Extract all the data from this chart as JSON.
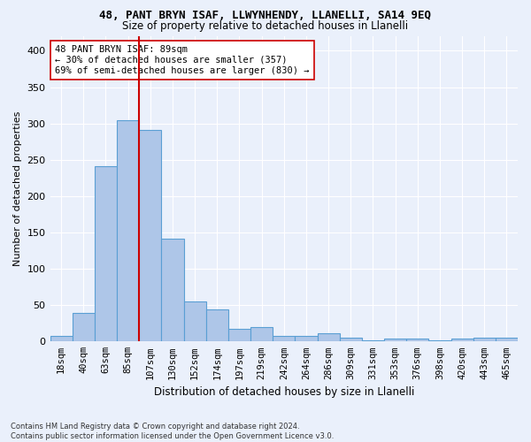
{
  "title1": "48, PANT BRYN ISAF, LLWYNHENDY, LLANELLI, SA14 9EQ",
  "title2": "Size of property relative to detached houses in Llanelli",
  "xlabel": "Distribution of detached houses by size in Llanelli",
  "ylabel": "Number of detached properties",
  "footnote": "Contains HM Land Registry data © Crown copyright and database right 2024.\nContains public sector information licensed under the Open Government Licence v3.0.",
  "categories": [
    "18sqm",
    "40sqm",
    "63sqm",
    "85sqm",
    "107sqm",
    "130sqm",
    "152sqm",
    "174sqm",
    "197sqm",
    "219sqm",
    "242sqm",
    "264sqm",
    "286sqm",
    "309sqm",
    "331sqm",
    "353sqm",
    "376sqm",
    "398sqm",
    "420sqm",
    "443sqm",
    "465sqm"
  ],
  "values": [
    8,
    39,
    241,
    305,
    291,
    142,
    55,
    44,
    18,
    20,
    8,
    8,
    11,
    5,
    2,
    4,
    4,
    1,
    4,
    5,
    5
  ],
  "bar_color": "#aec6e8",
  "bar_edge_color": "#5a9fd4",
  "background_color": "#eaf0fb",
  "grid_color": "#ffffff",
  "vline_pos": 3.5,
  "vline_color": "#cc0000",
  "annotation_text": "48 PANT BRYN ISAF: 89sqm\n← 30% of detached houses are smaller (357)\n69% of semi-detached houses are larger (830) →",
  "annotation_box_color": "#ffffff",
  "annotation_box_edge": "#cc0000",
  "ylim": [
    0,
    420
  ],
  "yticks": [
    0,
    50,
    100,
    150,
    200,
    250,
    300,
    350,
    400
  ]
}
